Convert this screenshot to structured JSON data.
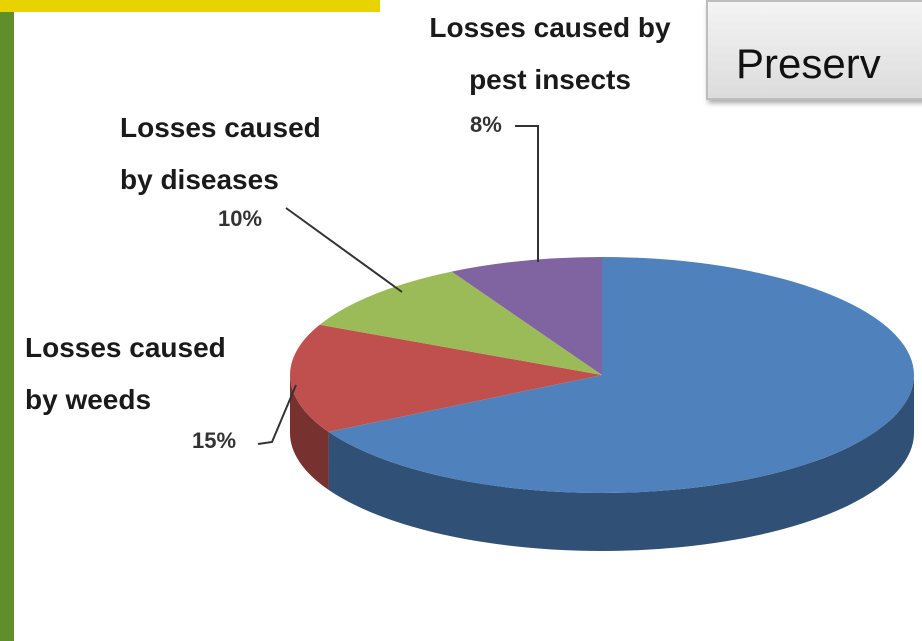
{
  "chart_data": {
    "type": "pie3d",
    "title": "Preserv",
    "categories": [
      null,
      "Losses caused by weeds",
      "Losses caused by diseases",
      "Losses caused by pest insects"
    ],
    "values": [
      67,
      15,
      10,
      8
    ],
    "value_labels": [
      null,
      "15%",
      "10%",
      "8%"
    ],
    "colors": [
      "#4f81bd",
      "#c0504d",
      "#9bbb59",
      "#8064a2"
    ]
  }
}
